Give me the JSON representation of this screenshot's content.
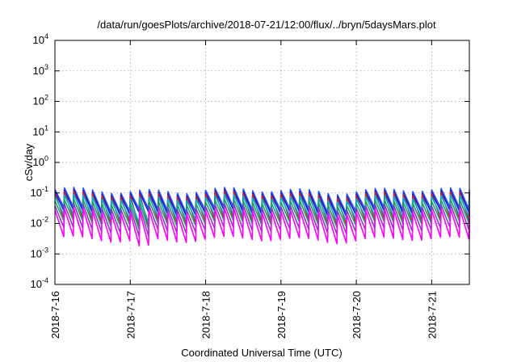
{
  "chart_data": {
    "type": "line",
    "title": "/data/run/goesPlots/archive/2018-07-21/12:00/flux/../bryn/5daysMars.plot",
    "xlabel": "Coordinated Universal Time (UTC)",
    "ylabel": "cSv/day",
    "xscale": "time",
    "yscale": "log",
    "xlim": [
      "2018-07-16T00:00",
      "2018-07-21T12:00"
    ],
    "ylim": [
      0.0001,
      10000
    ],
    "grid": true,
    "x_tick_labels": [
      "2018-7-16",
      "2018-7-17",
      "2018-7-18",
      "2018-7-19",
      "2018-7-20",
      "2018-7-21"
    ],
    "x_ticks": [
      "2018-07-16T00:00",
      "2018-07-17T00:00",
      "2018-07-18T00:00",
      "2018-07-19T00:00",
      "2018-07-20T00:00",
      "2018-07-21T00:00"
    ],
    "y_ticks": [
      {
        "base": "10",
        "exp": "-4",
        "value": 0.0001
      },
      {
        "base": "10",
        "exp": "-3",
        "value": 0.001
      },
      {
        "base": "10",
        "exp": "-2",
        "value": 0.01
      },
      {
        "base": "10",
        "exp": "-1",
        "value": 0.1
      },
      {
        "base": "10",
        "exp": "0",
        "value": 1
      },
      {
        "base": "10",
        "exp": "1",
        "value": 10
      },
      {
        "base": "10",
        "exp": "2",
        "value": 100
      },
      {
        "base": "10",
        "exp": "3",
        "value": 1000
      },
      {
        "base": "10",
        "exp": "4",
        "value": 10000
      }
    ],
    "sawtooth_period_hours": 3,
    "series": [
      {
        "color": "#2255ff",
        "peak": 0.12,
        "trough": 0.028
      },
      {
        "color": "#1a1acc",
        "peak": 0.1,
        "trough": 0.022
      },
      {
        "color": "#cc2222",
        "peak": 0.09,
        "trough": 0.012
      },
      {
        "color": "#00b0c8",
        "peak": 0.07,
        "trough": 0.016
      },
      {
        "color": "#20a060",
        "peak": 0.05,
        "trough": 0.01
      },
      {
        "color": "#8040c0",
        "peak": 0.035,
        "trough": 0.006
      },
      {
        "color": "#ff00ff",
        "peak": 0.025,
        "trough": 0.003
      }
    ]
  }
}
